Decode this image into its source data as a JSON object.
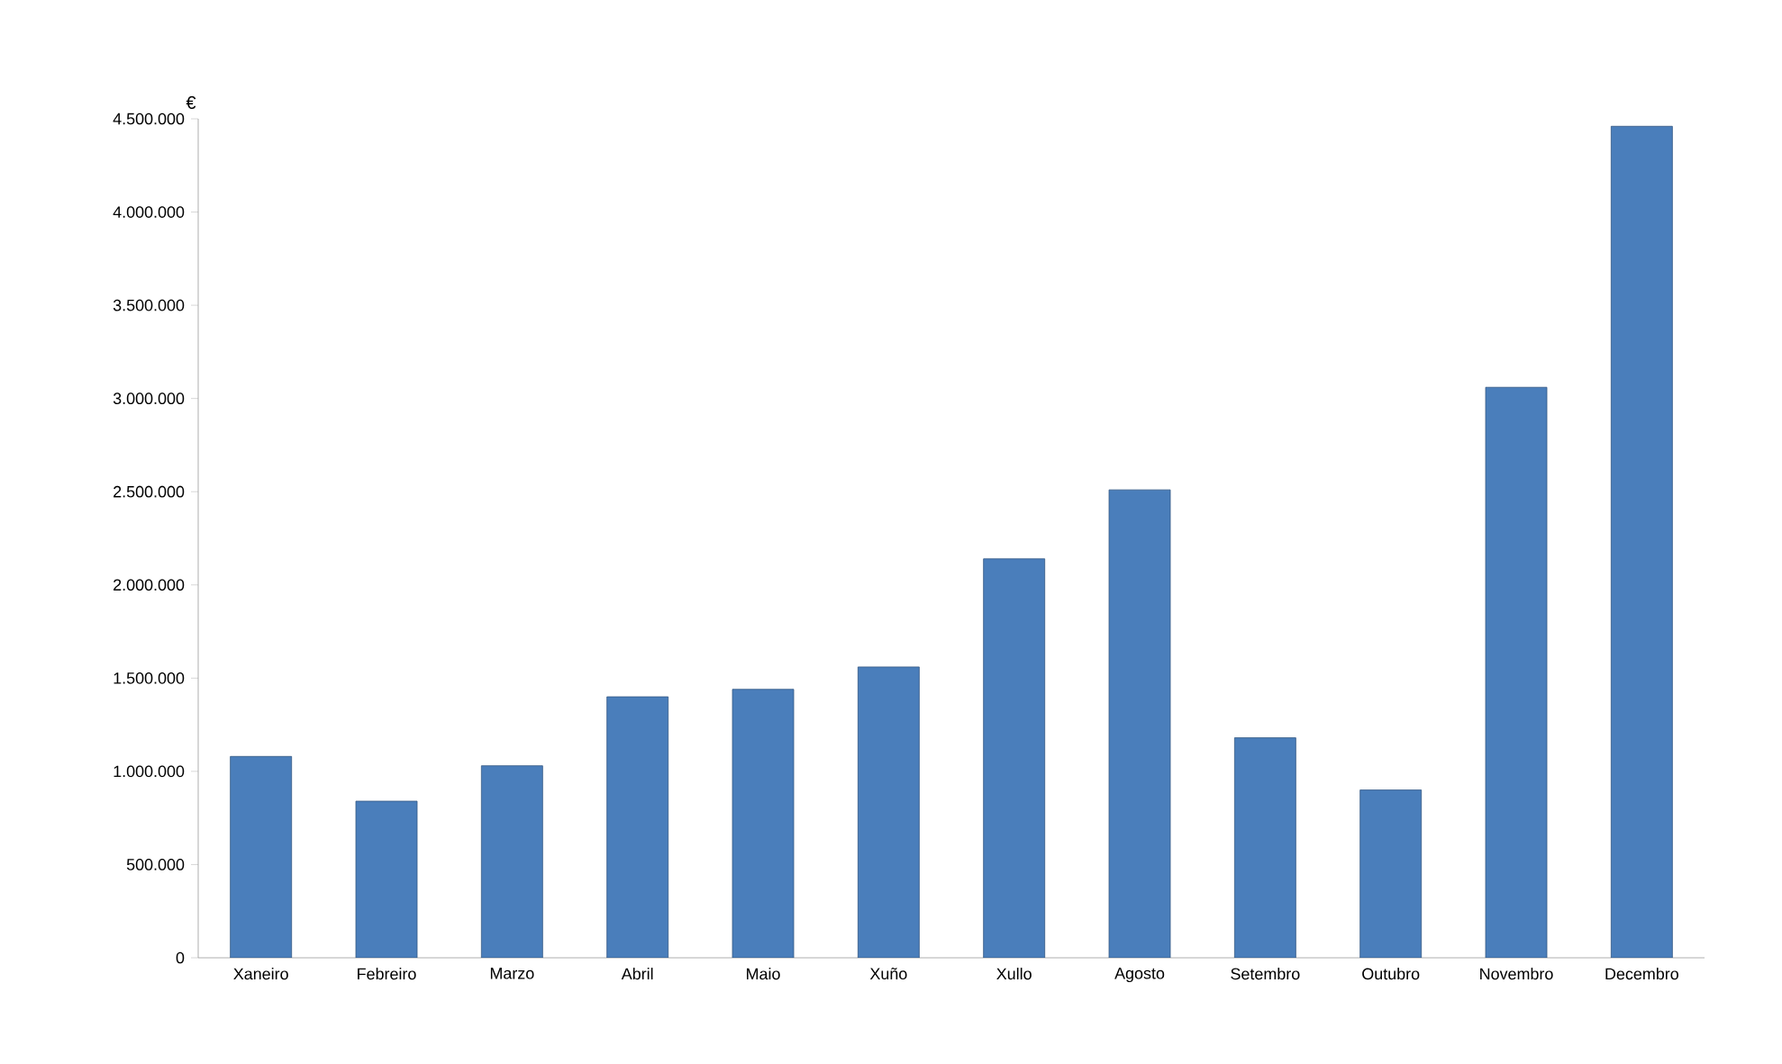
{
  "chart_data": {
    "type": "bar",
    "ylabel": "€",
    "categories": [
      "Xaneiro",
      "Febreiro",
      "Marzo",
      "Abril",
      "Maio",
      "Xuño",
      "Xullo",
      "Agosto",
      "Setembro",
      "Outubro",
      "Novembro",
      "Decembro"
    ],
    "values": [
      1080000,
      840000,
      1030000,
      1400000,
      1440000,
      1560000,
      2140000,
      2510000,
      1180000,
      900000,
      3060000,
      4460000
    ],
    "color": "#4a7ebb",
    "ylim": [
      0,
      4500000
    ],
    "yticks": [
      {
        "value": 0,
        "label": "0"
      },
      {
        "value": 500000,
        "label": "500.000"
      },
      {
        "value": 1000000,
        "label": "1.000.000"
      },
      {
        "value": 1500000,
        "label": "1.500.000"
      },
      {
        "value": 2000000,
        "label": "2.000.000"
      },
      {
        "value": 2500000,
        "label": "2.500.000"
      },
      {
        "value": 3000000,
        "label": "3.000.000"
      },
      {
        "value": 3500000,
        "label": "3.500.000"
      },
      {
        "value": 4000000,
        "label": "4.000.000"
      },
      {
        "value": 4500000,
        "label": "4.500.000"
      }
    ]
  }
}
